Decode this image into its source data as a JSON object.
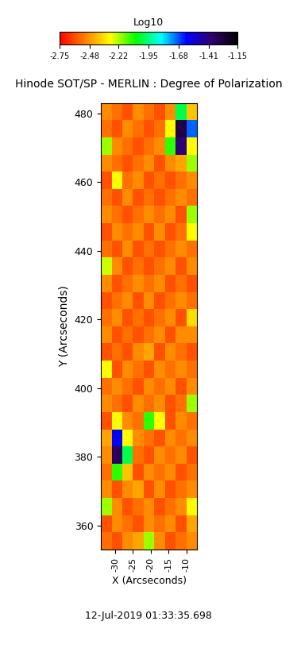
{
  "chart_data": {
    "type": "heatmap",
    "title": "Hinode SOT/SP - MERLIN : Degree of Polarization",
    "xlabel": "X (Arcseconds)",
    "ylabel": "Y (Arcseconds)",
    "annotation": "12-Jul-2019 01:33:35.698",
    "colorbar_label": "Log10",
    "colorbar_range": [
      -2.75,
      -1.15
    ],
    "colorbar_ticks": [
      -2.75,
      -2.48,
      -2.22,
      -1.95,
      -1.68,
      -1.41,
      -1.15
    ],
    "xlim": [
      -34,
      -7
    ],
    "ylim": [
      353,
      483
    ],
    "xticks": [
      -30,
      -25,
      -20,
      -15,
      -10
    ],
    "yticks": [
      360,
      380,
      400,
      420,
      440,
      460,
      480
    ],
    "x_edges": [
      -34,
      -31,
      -28,
      -25,
      -22,
      -19,
      -16,
      -13,
      -10,
      -7
    ],
    "y_edges": [
      353,
      358,
      363,
      368,
      373,
      378,
      383,
      388,
      393,
      398,
      403,
      408,
      413,
      418,
      423,
      428,
      433,
      438,
      443,
      448,
      453,
      458,
      463,
      468,
      473,
      478,
      483
    ],
    "cells": [
      [
        -2.55,
        -2.6,
        -2.5,
        -2.45,
        -2.2,
        -2.5,
        -2.6,
        -2.55,
        -2.5
      ],
      [
        -2.6,
        -2.5,
        -2.55,
        -2.6,
        -2.5,
        -2.55,
        -2.5,
        -2.6,
        -2.45
      ],
      [
        -2.2,
        -2.5,
        -2.6,
        -2.55,
        -2.5,
        -2.6,
        -2.55,
        -2.5,
        -2.3
      ],
      [
        -2.5,
        -2.6,
        -2.5,
        -2.45,
        -2.6,
        -2.5,
        -2.6,
        -2.55,
        -2.5
      ],
      [
        -2.55,
        -2.1,
        -2.4,
        -2.6,
        -2.5,
        -2.55,
        -2.5,
        -2.6,
        -2.55
      ],
      [
        -2.5,
        -1.35,
        -2.0,
        -2.55,
        -2.6,
        -2.5,
        -2.55,
        -2.5,
        -2.6
      ],
      [
        -2.45,
        -1.6,
        -2.3,
        -2.5,
        -2.55,
        -2.6,
        -2.5,
        -2.55,
        -2.5
      ],
      [
        -2.6,
        -2.3,
        -2.5,
        -2.55,
        -2.1,
        -2.3,
        -2.6,
        -2.5,
        -2.55
      ],
      [
        -2.5,
        -2.55,
        -2.6,
        -2.5,
        -2.55,
        -2.5,
        -2.6,
        -2.55,
        -2.2
      ],
      [
        -2.55,
        -2.5,
        -2.55,
        -2.6,
        -2.5,
        -2.55,
        -2.5,
        -2.6,
        -2.5
      ],
      [
        -2.3,
        -2.6,
        -2.5,
        -2.55,
        -2.6,
        -2.5,
        -2.55,
        -2.5,
        -2.55
      ],
      [
        -2.6,
        -2.55,
        -2.6,
        -2.5,
        -2.45,
        -2.6,
        -2.5,
        -2.55,
        -2.6
      ],
      [
        -2.5,
        -2.6,
        -2.55,
        -2.6,
        -2.55,
        -2.5,
        -2.6,
        -2.5,
        -2.5
      ],
      [
        -2.55,
        -2.5,
        -2.6,
        -2.55,
        -2.6,
        -2.55,
        -2.5,
        -2.6,
        -2.35
      ],
      [
        -2.6,
        -2.55,
        -2.5,
        -2.6,
        -2.5,
        -2.6,
        -2.55,
        -2.5,
        -2.55
      ],
      [
        -2.5,
        -2.6,
        -2.55,
        -2.5,
        -2.55,
        -2.5,
        -2.6,
        -2.55,
        -2.6
      ],
      [
        -2.25,
        -2.5,
        -2.6,
        -2.55,
        -2.6,
        -2.55,
        -2.5,
        -2.6,
        -2.5
      ],
      [
        -2.55,
        -2.6,
        -2.5,
        -2.6,
        -2.55,
        -2.6,
        -2.55,
        -2.5,
        -2.55
      ],
      [
        -2.6,
        -2.5,
        -2.55,
        -2.5,
        -2.6,
        -2.5,
        -2.6,
        -2.55,
        -2.3
      ],
      [
        -2.5,
        -2.55,
        -2.6,
        -2.55,
        -2.5,
        -2.55,
        -2.5,
        -2.6,
        -2.2
      ],
      [
        -2.55,
        -2.6,
        -2.5,
        -2.6,
        -2.55,
        -2.6,
        -2.55,
        -2.5,
        -2.55
      ],
      [
        -2.6,
        -2.3,
        -2.55,
        -2.5,
        -2.6,
        -2.55,
        -2.6,
        -2.55,
        -2.5
      ],
      [
        -2.5,
        -2.55,
        -2.6,
        -2.55,
        -2.5,
        -2.6,
        -2.5,
        -2.45,
        -2.2
      ],
      [
        -2.2,
        -2.5,
        -2.55,
        -2.6,
        -2.55,
        -2.5,
        -2.1,
        -1.4,
        -2.3
      ],
      [
        -2.55,
        -2.6,
        -2.5,
        -2.55,
        -2.6,
        -2.55,
        -2.3,
        -1.3,
        -1.7
      ],
      [
        -2.5,
        -2.55,
        -2.6,
        -2.5,
        -2.55,
        -2.6,
        -2.5,
        -2.0,
        -2.4
      ]
    ]
  }
}
